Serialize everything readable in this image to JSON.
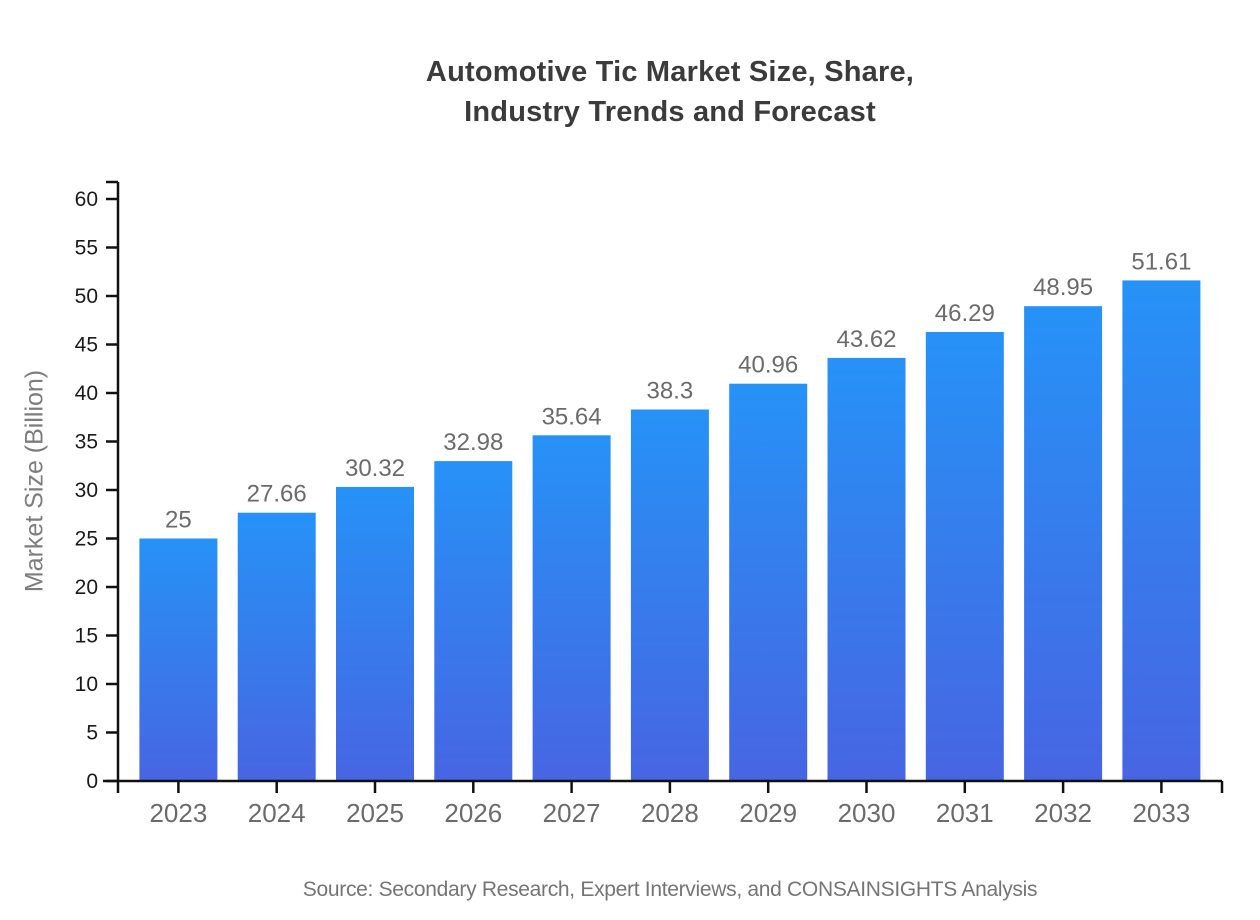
{
  "chart_data": {
    "type": "bar",
    "title_lines": [
      "Automotive Tic Market Size, Share,",
      "Industry Trends and Forecast"
    ],
    "categories": [
      "2023",
      "2024",
      "2025",
      "2026",
      "2027",
      "2028",
      "2029",
      "2030",
      "2031",
      "2032",
      "2033"
    ],
    "values": [
      25,
      27.66,
      30.32,
      32.98,
      35.64,
      38.3,
      40.96,
      43.62,
      46.29,
      48.95,
      51.61
    ],
    "value_labels": [
      "25",
      "27.66",
      "30.32",
      "32.98",
      "35.64",
      "38.3",
      "40.96",
      "43.62",
      "46.29",
      "48.95",
      "51.61"
    ],
    "xlabel": "",
    "ylabel": "Market Size (Billion)",
    "ylim": [
      0,
      60
    ],
    "yticks": [
      0,
      5,
      10,
      15,
      20,
      25,
      30,
      35,
      40,
      45,
      50,
      55,
      60
    ],
    "grid": false,
    "legend_position": "none",
    "colors": {
      "bar_gradient_top": "#2692F7",
      "bar_gradient_bottom": "#4765E2",
      "axis": "#111111",
      "y_tick_label": "#1a1a1a",
      "x_tick_label": "#6b6b6b",
      "value_label": "#6b6b6b",
      "title": "#3b3b3b",
      "y_axis_label": "#7d7d7d",
      "source": "#757575"
    }
  },
  "footer": {
    "source_text": "Source: Secondary Research, Expert Interviews, and CONSAINSIGHTS Analysis"
  }
}
